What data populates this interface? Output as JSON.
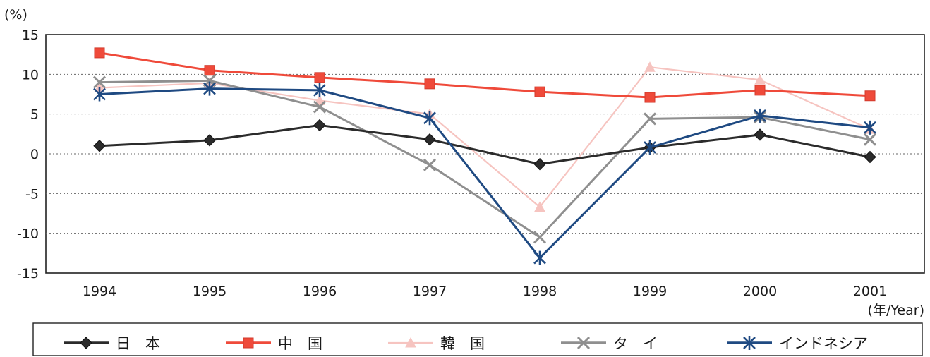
{
  "chart_data": {
    "type": "line",
    "y_unit_label": "(%)",
    "x_unit_label": "(年/Year)",
    "categories": [
      "1994",
      "1995",
      "1996",
      "1997",
      "1998",
      "1999",
      "2000",
      "2001"
    ],
    "ylim": [
      -15,
      15
    ],
    "yticks": [
      15,
      10,
      5,
      0,
      -5,
      -10,
      -15
    ],
    "grid": "horizontal dotted",
    "legend_position": "bottom",
    "series": [
      {
        "name": "日　本",
        "color": "#2b2b2b",
        "marker": "diamond",
        "values": [
          1.0,
          1.7,
          3.6,
          1.8,
          -1.3,
          0.8,
          2.4,
          -0.4
        ]
      },
      {
        "name": "中　国",
        "color": "#ef4a3a",
        "marker": "square",
        "values": [
          12.7,
          10.5,
          9.6,
          8.8,
          7.8,
          7.1,
          8.0,
          7.3
        ]
      },
      {
        "name": "韓　国",
        "color": "#f6c4c0",
        "marker": "triangle",
        "values": [
          8.3,
          8.9,
          6.7,
          5.0,
          -6.7,
          10.9,
          9.3,
          3.1
        ]
      },
      {
        "name": "タ　イ",
        "color": "#8f8f8f",
        "marker": "x",
        "values": [
          9.0,
          9.2,
          5.9,
          -1.4,
          -10.5,
          4.4,
          4.6,
          1.8
        ]
      },
      {
        "name": "インドネシア",
        "color": "#1f4a82",
        "marker": "asterisk",
        "values": [
          7.5,
          8.2,
          8.0,
          4.5,
          -13.1,
          0.8,
          4.8,
          3.3
        ]
      }
    ]
  }
}
